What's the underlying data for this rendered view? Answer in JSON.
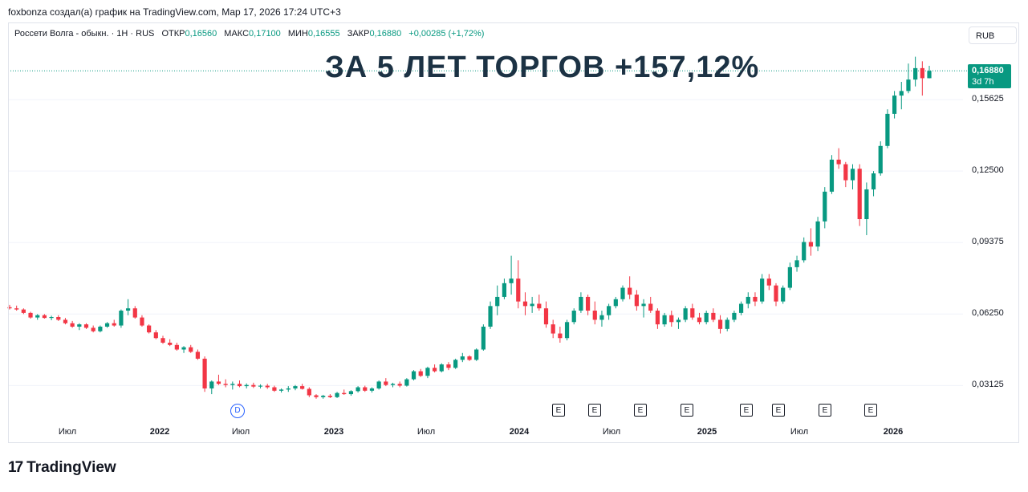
{
  "caption": "foxbonza создал(а) график на TradingView.com, Мар 17, 2026 17:24 UTC+3",
  "legend": {
    "symbol": "Россети Волга - обыкн. · 1Н · RUS",
    "open_label": "ОТКР",
    "open": "0,16560",
    "high_label": "МАКС",
    "high": "0,17100",
    "low_label": "МИН",
    "low": "0,16555",
    "close_label": "ЗАКР",
    "close": "0,16880",
    "change": "+0,00285 (+1,72%)"
  },
  "currency_button": "RUB",
  "headline": "ЗА 5 ЛЕТ ТОРГОВ +157,12%",
  "price_tag": {
    "price": "0,16880",
    "countdown": "3d 7h"
  },
  "colors": {
    "up": "#089981",
    "down": "#f23645",
    "headline": "#1c3244",
    "dividend": "#2962ff"
  },
  "y_ticks": [
    "0,15625",
    "0,12500",
    "0,09375",
    "0,06250",
    "0,03125"
  ],
  "x_ticks": [
    {
      "label": "Июл",
      "bold": false
    },
    {
      "label": "2022",
      "bold": true
    },
    {
      "label": "Июл",
      "bold": false
    },
    {
      "label": "2023",
      "bold": true
    },
    {
      "label": "Июл",
      "bold": false
    },
    {
      "label": "2024",
      "bold": true
    },
    {
      "label": "Июл",
      "bold": false
    },
    {
      "label": "2025",
      "bold": true
    },
    {
      "label": "Июл",
      "bold": false
    },
    {
      "label": "2026",
      "bold": true
    }
  ],
  "events": {
    "dividend_label": "D",
    "earnings_label": "E",
    "earnings_count": 8
  },
  "logo": {
    "mark": "17",
    "text": "TradingView"
  },
  "chart_data": {
    "type": "candlestick",
    "x_range": [
      "2021-03",
      "2026-03"
    ],
    "ylim": [
      0.0156,
      0.1875
    ],
    "candle_interval": "2 weeks",
    "candles": [
      [
        0.0655,
        0.0665,
        0.0645,
        0.065
      ],
      [
        0.065,
        0.0662,
        0.064,
        0.0645
      ],
      [
        0.0645,
        0.065,
        0.0625,
        0.063
      ],
      [
        0.063,
        0.0635,
        0.0605,
        0.061
      ],
      [
        0.061,
        0.0625,
        0.06,
        0.062
      ],
      [
        0.062,
        0.0625,
        0.0605,
        0.0608
      ],
      [
        0.0608,
        0.0618,
        0.0598,
        0.0612
      ],
      [
        0.0612,
        0.062,
        0.0595,
        0.06
      ],
      [
        0.06,
        0.0608,
        0.058,
        0.0585
      ],
      [
        0.0585,
        0.0595,
        0.0565,
        0.057
      ],
      [
        0.057,
        0.0585,
        0.0555,
        0.058
      ],
      [
        0.058,
        0.0585,
        0.056,
        0.0565
      ],
      [
        0.0565,
        0.0575,
        0.0545,
        0.055
      ],
      [
        0.055,
        0.0575,
        0.0545,
        0.057
      ],
      [
        0.057,
        0.059,
        0.0565,
        0.0585
      ],
      [
        0.0585,
        0.06,
        0.057,
        0.0575
      ],
      [
        0.0575,
        0.0645,
        0.0565,
        0.064
      ],
      [
        0.064,
        0.069,
        0.062,
        0.065
      ],
      [
        0.065,
        0.066,
        0.0605,
        0.061
      ],
      [
        0.061,
        0.062,
        0.057,
        0.0575
      ],
      [
        0.0575,
        0.058,
        0.054,
        0.0545
      ],
      [
        0.0545,
        0.0555,
        0.0515,
        0.052
      ],
      [
        0.052,
        0.053,
        0.0495,
        0.05
      ],
      [
        0.05,
        0.0515,
        0.0485,
        0.049
      ],
      [
        0.049,
        0.05,
        0.0465,
        0.047
      ],
      [
        0.047,
        0.0485,
        0.0455,
        0.048
      ],
      [
        0.048,
        0.049,
        0.0455,
        0.046
      ],
      [
        0.046,
        0.047,
        0.0425,
        0.043
      ],
      [
        0.043,
        0.044,
        0.0285,
        0.03
      ],
      [
        0.03,
        0.0335,
        0.0275,
        0.033
      ],
      [
        0.033,
        0.036,
        0.0315,
        0.032
      ],
      [
        0.032,
        0.034,
        0.0305,
        0.0315
      ],
      [
        0.0315,
        0.033,
        0.0295,
        0.032
      ],
      [
        0.032,
        0.0335,
        0.0305,
        0.031
      ],
      [
        0.031,
        0.0322,
        0.03,
        0.0315
      ],
      [
        0.0315,
        0.0325,
        0.0302,
        0.0308
      ],
      [
        0.0308,
        0.0318,
        0.03,
        0.0312
      ],
      [
        0.0312,
        0.032,
        0.0298,
        0.0305
      ],
      [
        0.0305,
        0.0312,
        0.0285,
        0.029
      ],
      [
        0.029,
        0.03,
        0.0282,
        0.0295
      ],
      [
        0.0295,
        0.031,
        0.0285,
        0.03
      ],
      [
        0.03,
        0.0315,
        0.0292,
        0.031
      ],
      [
        0.031,
        0.032,
        0.0295,
        0.0298
      ],
      [
        0.0298,
        0.0305,
        0.0262,
        0.027
      ],
      [
        0.027,
        0.0275,
        0.0255,
        0.0262
      ],
      [
        0.0262,
        0.0272,
        0.0255,
        0.0268
      ],
      [
        0.0268,
        0.0275,
        0.0258,
        0.0262
      ],
      [
        0.0262,
        0.0285,
        0.0258,
        0.028
      ],
      [
        0.028,
        0.0295,
        0.0272,
        0.0275
      ],
      [
        0.0275,
        0.0292,
        0.0268,
        0.0288
      ],
      [
        0.0288,
        0.031,
        0.0282,
        0.0305
      ],
      [
        0.0305,
        0.0312,
        0.0285,
        0.029
      ],
      [
        0.029,
        0.0305,
        0.0282,
        0.03
      ],
      [
        0.03,
        0.0335,
        0.0295,
        0.033
      ],
      [
        0.033,
        0.0345,
        0.031,
        0.0315
      ],
      [
        0.0315,
        0.0325,
        0.0305,
        0.032
      ],
      [
        0.032,
        0.033,
        0.0305,
        0.0312
      ],
      [
        0.0312,
        0.0345,
        0.0308,
        0.034
      ],
      [
        0.034,
        0.038,
        0.0335,
        0.0375
      ],
      [
        0.0375,
        0.0385,
        0.035,
        0.0355
      ],
      [
        0.0355,
        0.0395,
        0.0345,
        0.039
      ],
      [
        0.039,
        0.0405,
        0.037,
        0.0375
      ],
      [
        0.0375,
        0.041,
        0.037,
        0.0405
      ],
      [
        0.0405,
        0.0415,
        0.038,
        0.039
      ],
      [
        0.039,
        0.043,
        0.0385,
        0.0425
      ],
      [
        0.0425,
        0.0455,
        0.0415,
        0.044
      ],
      [
        0.044,
        0.0445,
        0.042,
        0.0425
      ],
      [
        0.0425,
        0.0475,
        0.042,
        0.047
      ],
      [
        0.047,
        0.058,
        0.0465,
        0.057
      ],
      [
        0.057,
        0.068,
        0.056,
        0.066
      ],
      [
        0.066,
        0.075,
        0.062,
        0.07
      ],
      [
        0.07,
        0.078,
        0.069,
        0.076
      ],
      [
        0.076,
        0.088,
        0.071,
        0.078
      ],
      [
        0.078,
        0.086,
        0.065,
        0.068
      ],
      [
        0.068,
        0.072,
        0.062,
        0.066
      ],
      [
        0.066,
        0.07,
        0.063,
        0.067
      ],
      [
        0.067,
        0.071,
        0.064,
        0.065
      ],
      [
        0.065,
        0.068,
        0.0565,
        0.058
      ],
      [
        0.058,
        0.06,
        0.052,
        0.054
      ],
      [
        0.054,
        0.057,
        0.05,
        0.052
      ],
      [
        0.052,
        0.06,
        0.051,
        0.059
      ],
      [
        0.059,
        0.065,
        0.058,
        0.064
      ],
      [
        0.064,
        0.072,
        0.063,
        0.07
      ],
      [
        0.07,
        0.071,
        0.062,
        0.064
      ],
      [
        0.064,
        0.068,
        0.058,
        0.06
      ],
      [
        0.06,
        0.064,
        0.057,
        0.062
      ],
      [
        0.062,
        0.067,
        0.06,
        0.066
      ],
      [
        0.066,
        0.07,
        0.065,
        0.069
      ],
      [
        0.069,
        0.075,
        0.068,
        0.074
      ],
      [
        0.074,
        0.079,
        0.069,
        0.071
      ],
      [
        0.071,
        0.073,
        0.064,
        0.066
      ],
      [
        0.066,
        0.069,
        0.061,
        0.067
      ],
      [
        0.067,
        0.07,
        0.063,
        0.064
      ],
      [
        0.064,
        0.065,
        0.056,
        0.058
      ],
      [
        0.058,
        0.063,
        0.057,
        0.062
      ],
      [
        0.062,
        0.064,
        0.057,
        0.059
      ],
      [
        0.059,
        0.061,
        0.056,
        0.06
      ],
      [
        0.06,
        0.066,
        0.059,
        0.065
      ],
      [
        0.065,
        0.067,
        0.06,
        0.061
      ],
      [
        0.061,
        0.063,
        0.058,
        0.059
      ],
      [
        0.059,
        0.064,
        0.058,
        0.063
      ],
      [
        0.063,
        0.065,
        0.059,
        0.06
      ],
      [
        0.06,
        0.062,
        0.054,
        0.056
      ],
      [
        0.056,
        0.061,
        0.055,
        0.06
      ],
      [
        0.06,
        0.064,
        0.059,
        0.063
      ],
      [
        0.063,
        0.068,
        0.062,
        0.067
      ],
      [
        0.067,
        0.072,
        0.065,
        0.07
      ],
      [
        0.07,
        0.072,
        0.066,
        0.068
      ],
      [
        0.068,
        0.08,
        0.067,
        0.078
      ],
      [
        0.078,
        0.08,
        0.073,
        0.075
      ],
      [
        0.075,
        0.076,
        0.066,
        0.068
      ],
      [
        0.068,
        0.075,
        0.067,
        0.074
      ],
      [
        0.074,
        0.085,
        0.073,
        0.083
      ],
      [
        0.083,
        0.088,
        0.081,
        0.086
      ],
      [
        0.086,
        0.096,
        0.085,
        0.094
      ],
      [
        0.094,
        0.1,
        0.088,
        0.092
      ],
      [
        0.092,
        0.105,
        0.09,
        0.103
      ],
      [
        0.103,
        0.118,
        0.1,
        0.116
      ],
      [
        0.116,
        0.132,
        0.115,
        0.13
      ],
      [
        0.13,
        0.135,
        0.126,
        0.128
      ],
      [
        0.128,
        0.129,
        0.118,
        0.121
      ],
      [
        0.121,
        0.128,
        0.117,
        0.126
      ],
      [
        0.126,
        0.128,
        0.101,
        0.104
      ],
      [
        0.104,
        0.12,
        0.097,
        0.117
      ],
      [
        0.117,
        0.125,
        0.114,
        0.124
      ],
      [
        0.124,
        0.138,
        0.123,
        0.136
      ],
      [
        0.136,
        0.152,
        0.135,
        0.15
      ],
      [
        0.15,
        0.16,
        0.148,
        0.158
      ],
      [
        0.158,
        0.164,
        0.152,
        0.16
      ],
      [
        0.16,
        0.172,
        0.159,
        0.165
      ],
      [
        0.165,
        0.175,
        0.162,
        0.17
      ],
      [
        0.17,
        0.173,
        0.158,
        0.1656
      ],
      [
        0.1656,
        0.171,
        0.16555,
        0.1688
      ]
    ],
    "last_price": 0.1688,
    "change": 0.00285,
    "change_pct": 1.72
  }
}
